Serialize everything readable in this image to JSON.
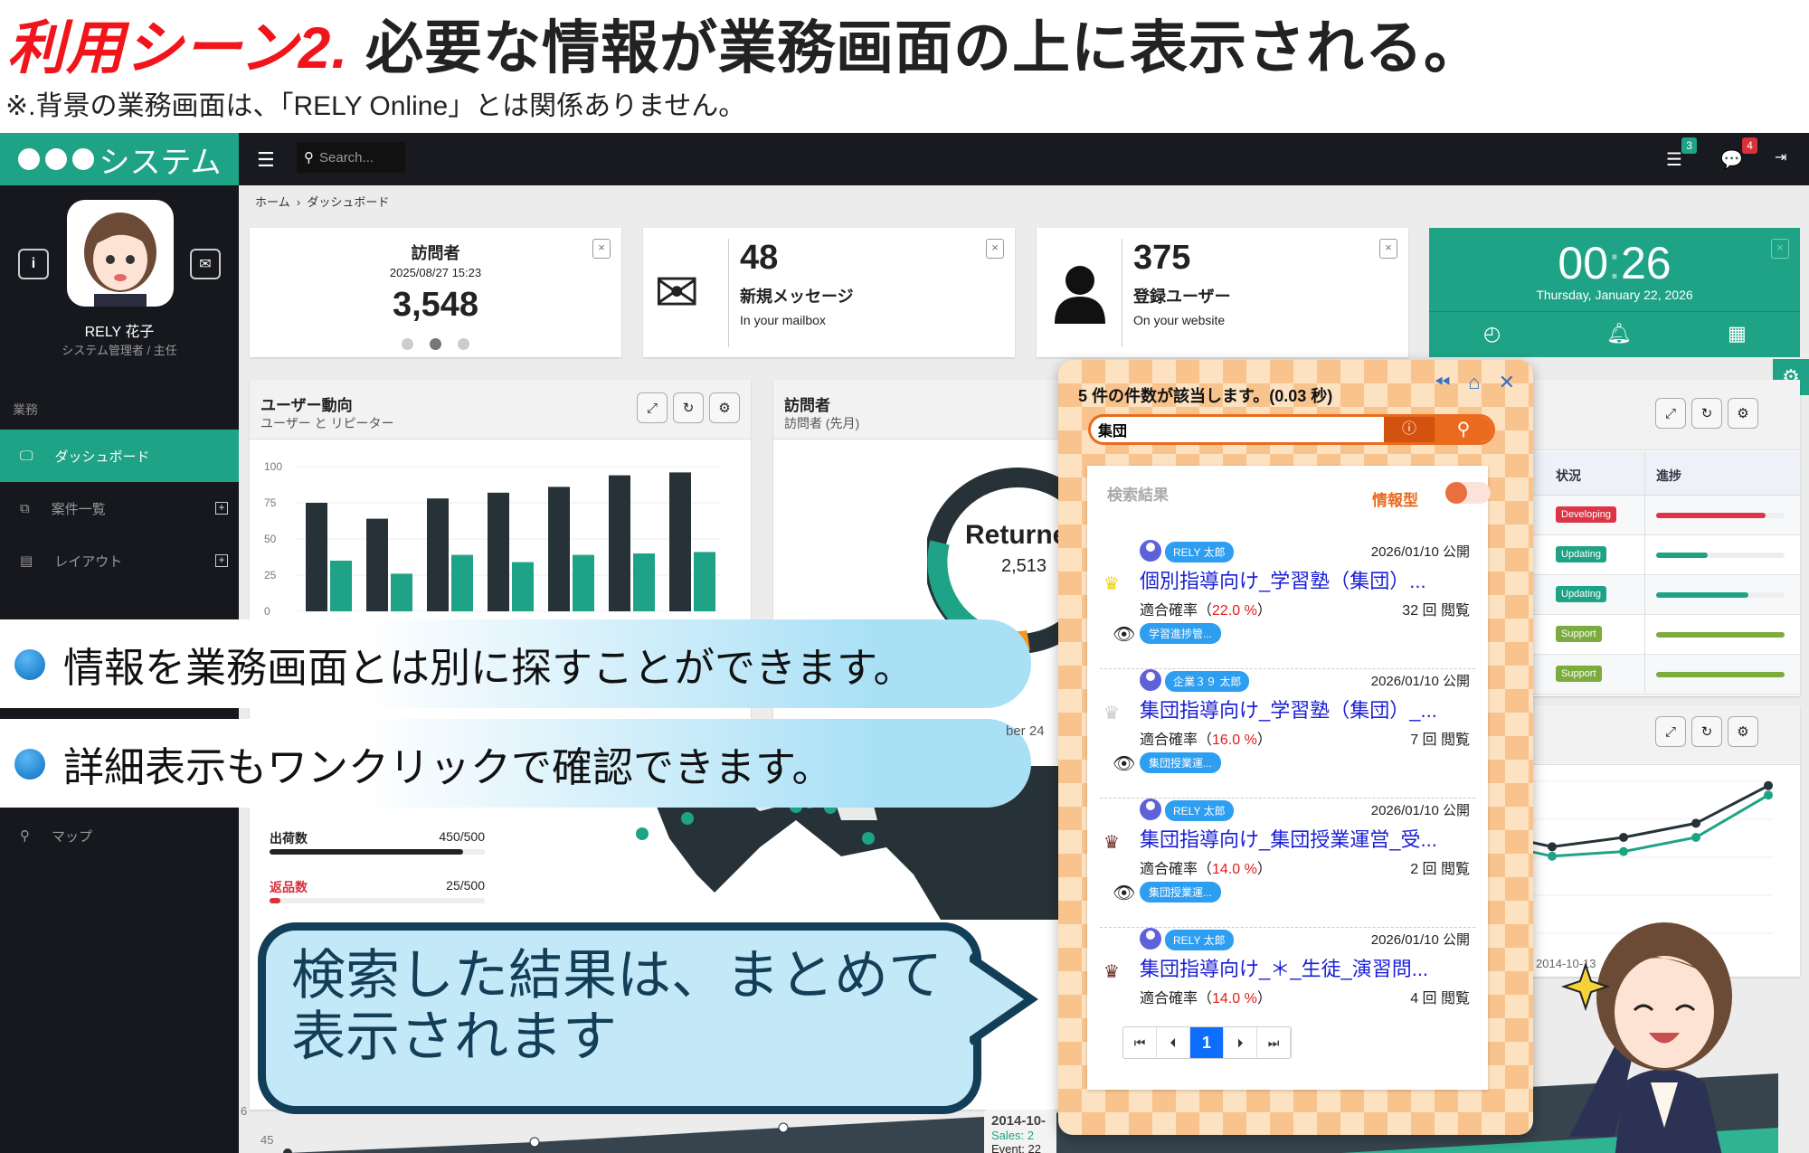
{
  "slide": {
    "title_red": "利用シーン2.",
    "title_black": "必要な情報が業務画面の上に表示される。",
    "subtitle": "※.背景の業務画面は、「RELY Online」とは関係ありません。"
  },
  "app": {
    "logo_text": "システム",
    "search_placeholder": "Search...",
    "notifications": {
      "tasks_count": "3",
      "messages_count": "4"
    },
    "profile": {
      "name": "RELY 花子",
      "role": "システム管理者 / 主任"
    },
    "sidebar": {
      "section": "業務",
      "items": [
        {
          "label": "ダッシュボード",
          "icon": "monitor-icon"
        },
        {
          "label": "案件一覧",
          "icon": "copy-icon"
        },
        {
          "label": "レイアウト",
          "icon": "document-icon"
        },
        {
          "label": "マップ",
          "icon": "map-pin-icon"
        }
      ]
    },
    "breadcrumb": [
      "ホーム",
      "ダッシュボード"
    ],
    "stats": [
      {
        "title": "訪問者",
        "date": "2025/08/27 15:23",
        "value": "3,548"
      },
      {
        "value": "48",
        "label": "新規メッセージ",
        "sub": "In your mailbox"
      },
      {
        "value": "375",
        "label": "登録ユーザー",
        "sub": "On your website"
      }
    ],
    "clock": {
      "time_h": "00",
      "time_m": "26",
      "date": "Thursday, January 22, 2026"
    },
    "user_trend": {
      "title": "ユーザー動向",
      "subtitle": "ユーザー と リピーター"
    },
    "visitors_panel": {
      "title": "訪問者",
      "subtitle": "訪問者 (先月)",
      "donut_label": "Returne",
      "donut_value": "2,513",
      "partial_date": "ber 24"
    },
    "shipping": {
      "shipped_label": "出荷数",
      "shipped_value": "450/500",
      "shipped_fraction": 0.9,
      "returns_label": "返品数",
      "returns_value": "25/500",
      "returns_fraction": 0.05
    },
    "status_table": {
      "headers": [
        "状況",
        "進捗"
      ],
      "rows": [
        {
          "status": "Developing",
          "color": "#dc3545",
          "progress": 85
        },
        {
          "status": "Updating",
          "color": "#1fa386",
          "progress": 40
        },
        {
          "status": "Updating",
          "color": "#1fa386",
          "progress": 72
        },
        {
          "status": "Support",
          "color": "#7cab3e",
          "progress": 100
        },
        {
          "status": "Support",
          "color": "#7cab3e",
          "progress": 100
        }
      ]
    },
    "bottom_chart": {
      "tick_45": "45",
      "tick_6x": "6",
      "tooltip_date": "2014-10-",
      "tooltip_sales": "Sales: 2",
      "tooltip_event": "Event: 22"
    }
  },
  "popup": {
    "count_text": "5 件の件数が該当します。(0.03 秒)",
    "query": "集団",
    "results_label": "検索結果",
    "toggle_label": "情報型",
    "items": [
      {
        "author": "RELY 太郎",
        "date": "2026/01/10 公開",
        "title": "個別指導向け_学習塾（集団）...",
        "rate_label": "適合確率（",
        "rate": "22.0 %",
        "rate_close": "）",
        "views": "32 回 閲覧",
        "tag": "学習進捗管...",
        "crown": "#f5d000"
      },
      {
        "author": "企業３９ 太郎",
        "date": "2026/01/10 公開",
        "title": "集団指導向け_学習塾（集団）_...",
        "rate_label": "適合確率（",
        "rate": "16.0 %",
        "rate_close": "）",
        "views": "7 回 閲覧",
        "tag": "集団授業運...",
        "crown": "#c8c8c8"
      },
      {
        "author": "RELY 太郎",
        "date": "2026/01/10 公開",
        "title": "集団指導向け_集団授業運営_受...",
        "rate_label": "適合確率（",
        "rate": "14.0 %",
        "rate_close": "）",
        "views": "2 回 閲覧",
        "tag": "集団授業運...",
        "crown": "#6b2a22"
      },
      {
        "author": "RELY 太郎",
        "date": "2026/01/10 公開",
        "title": "集団指導向け_＊_生徒_演習問...",
        "rate_label": "適合確率（",
        "rate": "14.0 %",
        "rate_close": "）",
        "views": "4 回 閲覧",
        "tag": "",
        "crown": "#6b2a22"
      }
    ],
    "pager": {
      "first": "⏮",
      "prev": "⏴",
      "current": "1",
      "next": "⏵",
      "last": "⏭"
    }
  },
  "callouts": {
    "bullet1": "情報を業務画面とは別に探すことができます。",
    "bullet2": "詳細表示もワンクリックで確認できます。",
    "bubble_line1": "検索した結果は、まとめて",
    "bubble_line2": "表示されます"
  },
  "chart_data": [
    {
      "type": "bar",
      "ylim": [
        0,
        100
      ],
      "yticks": [
        "100",
        "75",
        "50",
        "25",
        "0"
      ],
      "series": [
        {
          "color": "#263238",
          "values": [
            75,
            64,
            78,
            82,
            86,
            94,
            96
          ]
        },
        {
          "color": "#1fa386",
          "values": [
            35,
            26,
            39,
            34,
            39,
            40,
            41
          ]
        }
      ]
    },
    {
      "type": "line",
      "x_label": "2014-10-13",
      "series": [
        {
          "color": "#263238",
          "values": [
            46,
            50,
            56,
            72
          ]
        },
        {
          "color": "#1fa386",
          "values": [
            42,
            44,
            50,
            68
          ]
        }
      ]
    }
  ],
  "colors": {
    "accent": "#1fa386",
    "popup_orange": "#ea6a1e",
    "link_blue": "#1a1fd6"
  }
}
